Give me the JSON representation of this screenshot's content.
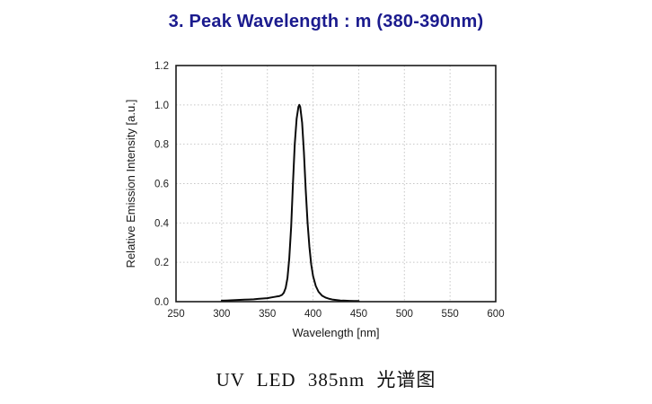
{
  "page": {
    "title": "3. Peak Wavelength : m (380-390nm)",
    "title_color": "#1b1b8e",
    "caption": "UV LED 385nm 光谱图"
  },
  "chart_data": {
    "type": "line",
    "title": "",
    "xlabel": "Wavelength [nm]",
    "ylabel": "Relative Emission Intensity [a.u.]",
    "xlim": [
      250,
      600
    ],
    "ylim": [
      0,
      1.2
    ],
    "xticks": [
      250,
      300,
      350,
      400,
      450,
      500,
      550,
      600
    ],
    "yticks": [
      0.0,
      0.2,
      0.4,
      0.6,
      0.8,
      1.0,
      1.2
    ],
    "grid": true,
    "grid_style": "dotted",
    "grid_color": "#c6c6c6",
    "frame_color": "#1a1a1a",
    "tick_label_color": "#222222",
    "legend_position": "none",
    "peak_wavelength_nm": 385,
    "peak_intensity": 1.0,
    "series": [
      {
        "name": "UV LED 385nm emission spectrum",
        "color": "#0a0a0a",
        "line_width": 2,
        "x": [
          300,
          305,
          310,
          315,
          320,
          325,
          330,
          335,
          340,
          345,
          350,
          355,
          360,
          363,
          366,
          368,
          370,
          372,
          374,
          376,
          378,
          380,
          382,
          384,
          385,
          386,
          388,
          390,
          392,
          394,
          396,
          398,
          400,
          403,
          406,
          410,
          414,
          418,
          422,
          426,
          430,
          435,
          440,
          445,
          450
        ],
        "y": [
          0.005,
          0.006,
          0.007,
          0.008,
          0.009,
          0.01,
          0.011,
          0.012,
          0.014,
          0.016,
          0.018,
          0.022,
          0.026,
          0.028,
          0.034,
          0.045,
          0.07,
          0.12,
          0.22,
          0.38,
          0.6,
          0.8,
          0.93,
          0.99,
          1.0,
          0.99,
          0.91,
          0.76,
          0.57,
          0.4,
          0.28,
          0.19,
          0.13,
          0.08,
          0.05,
          0.03,
          0.02,
          0.014,
          0.01,
          0.008,
          0.006,
          0.005,
          0.004,
          0.003,
          0.003
        ]
      }
    ]
  }
}
